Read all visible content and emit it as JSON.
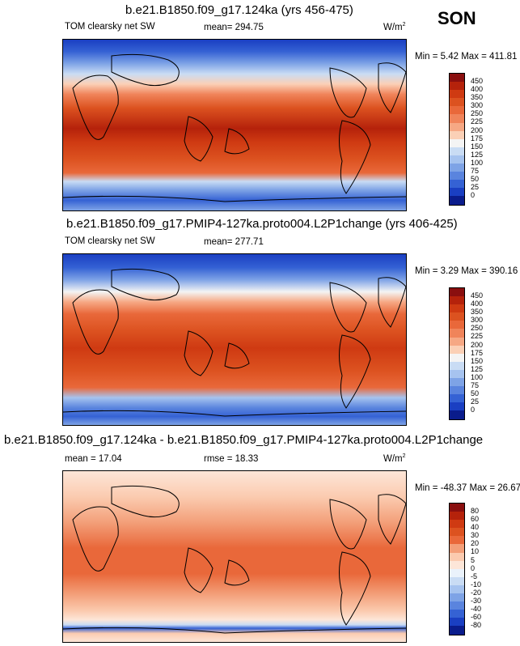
{
  "season": "SON",
  "panels": [
    {
      "title": "b.e21.B1850.f09_g17.124ka (yrs 456-475)",
      "variable": "TOM clearsky net SW",
      "stat": "mean= 294.75",
      "units": "W/m",
      "units_sup": "2",
      "minmax": "Min =   5.42 Max = 411.81",
      "colorbar_labels": [
        "450",
        "400",
        "350",
        "300",
        "250",
        "225",
        "200",
        "175",
        "150",
        "125",
        "100",
        "75",
        "50",
        "25",
        "0"
      ]
    },
    {
      "title": "b.e21.B1850.f09_g17.PMIP4-127ka.proto004.L2P1change (yrs 406-425)",
      "variable": "TOM clearsky net SW",
      "stat": "mean= 277.71",
      "units": "",
      "units_sup": "",
      "minmax": "Min =   3.29 Max = 390.16",
      "colorbar_labels": [
        "450",
        "400",
        "350",
        "300",
        "250",
        "225",
        "200",
        "175",
        "150",
        "125",
        "100",
        "75",
        "50",
        "25",
        "0"
      ]
    },
    {
      "title": "b.e21.B1850.f09_g17.124ka - b.e21.B1850.f09_g17.PMIP4-127ka.proto004.L2P1change",
      "variable": "mean =  17.04",
      "stat": "rmse =  18.33",
      "units": "W/m",
      "units_sup": "2",
      "minmax": "Min = -48.37 Max =  26.67",
      "colorbar_labels": [
        "80",
        "60",
        "40",
        "30",
        "20",
        "10",
        "5",
        "0",
        "-5",
        "-10",
        "-20",
        "-30",
        "-40",
        "-60",
        "-80"
      ]
    }
  ],
  "colors": {
    "abs_scale": [
      "#8a0f0f",
      "#b5220b",
      "#cf3a12",
      "#dc5220",
      "#e9683a",
      "#f0845a",
      "#f6a884",
      "#fbd0b6",
      "#f4f4f4",
      "#c9dcf4",
      "#a6c3ef",
      "#7ea3e6",
      "#5a84de",
      "#3562d4",
      "#1a3fc2",
      "#0a1c8c"
    ],
    "diff_scale": [
      "#8a0f0f",
      "#b5220b",
      "#cf3a12",
      "#dc5220",
      "#e9683a",
      "#f39f79",
      "#fbcbb0",
      "#fde6d8",
      "#eaf2fb",
      "#c9dcf4",
      "#a6c3ef",
      "#7ea3e6",
      "#5a84de",
      "#3562d4",
      "#1a3fc2",
      "#0a1c8c"
    ]
  }
}
